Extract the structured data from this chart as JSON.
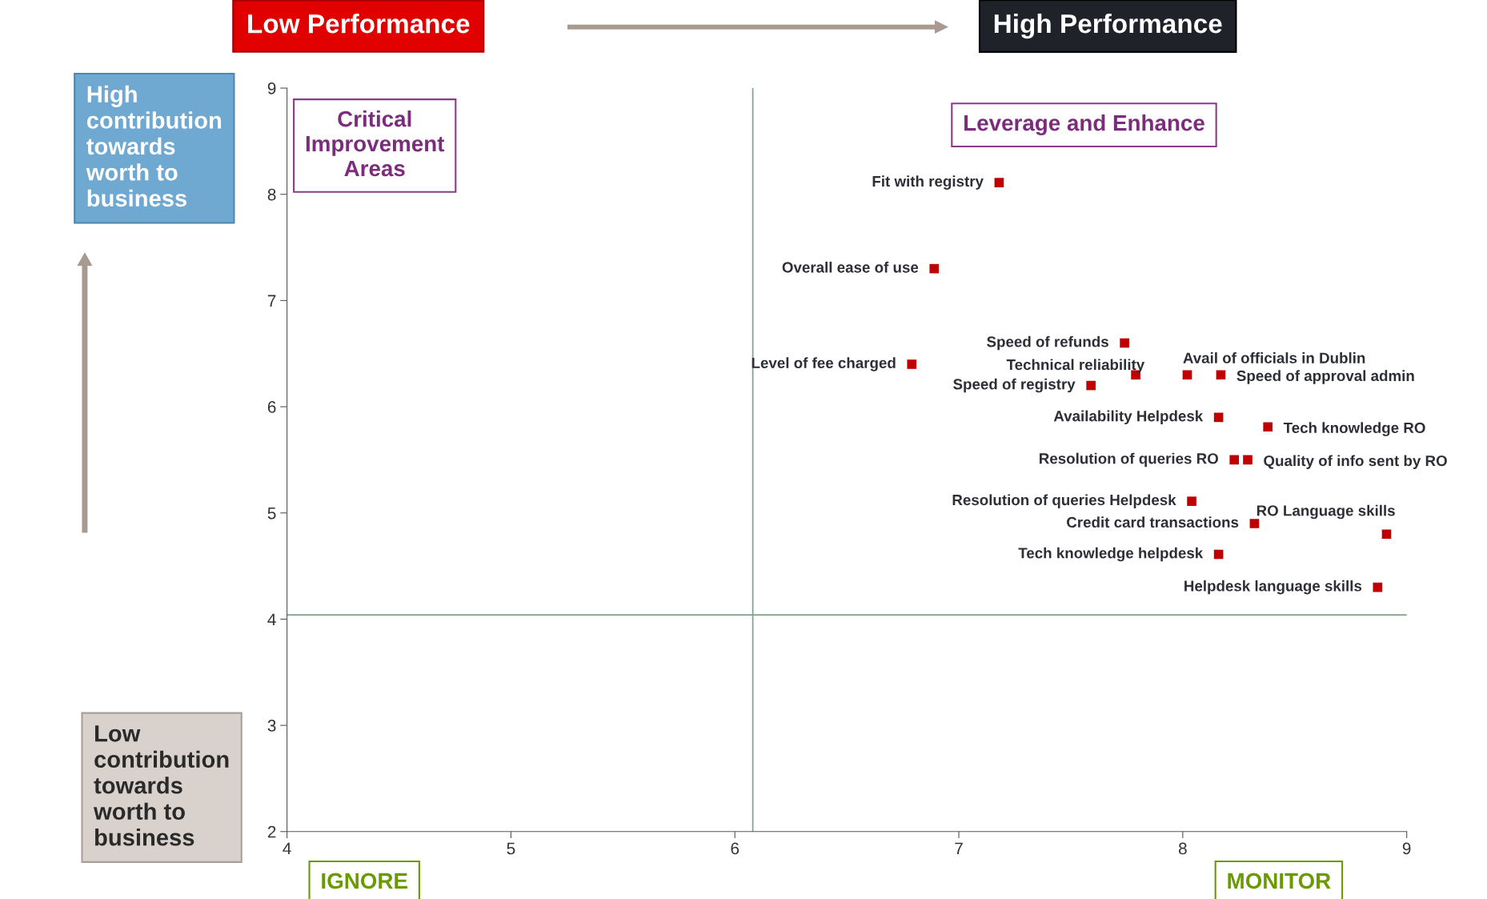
{
  "chart_data": {
    "type": "scatter",
    "marker": "square",
    "grid": false,
    "xlim": [
      4,
      9
    ],
    "ylim": [
      2,
      9
    ],
    "xticks": [
      4,
      5,
      6,
      7,
      8,
      9
    ],
    "yticks": [
      2,
      3,
      4,
      5,
      6,
      7,
      8,
      9
    ],
    "x": [
      7.18,
      6.89,
      7.74,
      6.79,
      7.79,
      8.02,
      8.17,
      7.59,
      8.16,
      8.38,
      8.23,
      8.29,
      8.04,
      8.32,
      8.91,
      8.16,
      8.87
    ],
    "series": [
      {
        "color": "#c00000",
        "values": [
          8.11,
          7.3,
          6.6,
          6.4,
          6.3,
          6.3,
          6.3,
          6.2,
          5.9,
          5.81,
          5.5,
          5.5,
          5.11,
          4.9,
          4.8,
          4.61,
          4.3
        ]
      }
    ],
    "ref_lines": [
      {
        "axis": "x",
        "value": 6.08,
        "color": "#7fa08a"
      },
      {
        "axis": "y",
        "value": 4.04,
        "color": "#7fa08a"
      }
    ],
    "annotations": [
      "Low Performance",
      "High Performance",
      "High contribution towards worth to business",
      "Low contribution towards worth to business",
      "Critical Improvement Areas",
      "Leverage and Enhance",
      "IGNORE",
      "MONITOR",
      {
        "text": "Fit with registry",
        "x": 7.18,
        "y": 8.11
      },
      {
        "text": "Overall ease of use",
        "x": 6.89,
        "y": 7.3
      },
      {
        "text": "Speed of refunds",
        "x": 7.74,
        "y": 6.6
      },
      {
        "text": "Level of fee charged",
        "x": 6.79,
        "y": 6.4
      },
      {
        "text": "Technical reliability",
        "x": 7.79,
        "y": 6.3
      },
      {
        "text": "Avail of officials in Dublin",
        "x": 8.02,
        "y": 6.3
      },
      {
        "text": "Speed of approval admin",
        "x": 8.17,
        "y": 6.3
      },
      {
        "text": "Speed of registry",
        "x": 7.59,
        "y": 6.2
      },
      {
        "text": "Availability Helpdesk",
        "x": 8.16,
        "y": 5.9
      },
      {
        "text": "Tech knowledge RO",
        "x": 8.38,
        "y": 5.81
      },
      {
        "text": "Resolution of queries RO",
        "x": 8.23,
        "y": 5.5
      },
      {
        "text": "Quality of info sent by RO",
        "x": 8.29,
        "y": 5.5
      },
      {
        "text": "Resolution of queries Helpdesk",
        "x": 8.04,
        "y": 5.11
      },
      {
        "text": "Credit card transactions",
        "x": 8.32,
        "y": 4.9
      },
      {
        "text": "RO Language skills",
        "x": 8.91,
        "y": 4.8
      },
      {
        "text": "Tech knowledge helpdesk",
        "x": 8.16,
        "y": 4.61
      },
      {
        "text": "Helpdesk language skills",
        "x": 8.87,
        "y": 4.3
      }
    ]
  }
}
